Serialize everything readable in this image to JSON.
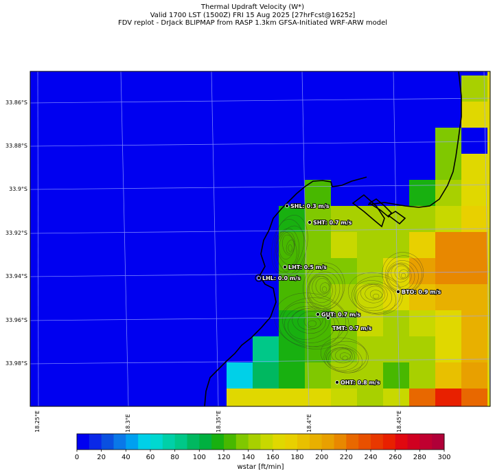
{
  "title": {
    "line1": "Thermal Updraft Velocity (W*)",
    "line2": "Valid 1700 LST (1500Z) FRI 15 Aug 2025 [27hrFcst@1625z]",
    "line3": "FDV replot - DrJack BLIPMAP from RASP 1.3km GFSA-Initiated WRF-ARW model"
  },
  "latitude_labels": [
    "33.86°S",
    "33.88°S",
    "33.9°S",
    "33.92°S",
    "33.94°S",
    "33.96°S",
    "33.98°S"
  ],
  "longitude_labels": [
    "18.25°E",
    "18.3°E",
    "18.35°E",
    "18.4°E",
    "18.45°E"
  ],
  "stations": [
    {
      "label": "SHL: 0.3 m/s"
    },
    {
      "label": "SHT: 0.7 m/s"
    },
    {
      "label": "LHT: 0.5 m/s"
    },
    {
      "label": "LHL: 0.0 m/s"
    },
    {
      "label": "BTO: 0.9 m/s"
    },
    {
      "label": "GUT: 0.7 m/s"
    },
    {
      "label": "TMT: 0.7 m/s"
    },
    {
      "label": "OHT: 0.8 m/s"
    }
  ],
  "colorbar": {
    "label": "wstar [ft/min]",
    "ticks": [
      "0",
      "20",
      "40",
      "60",
      "80",
      "100",
      "120",
      "140",
      "160",
      "180",
      "200",
      "220",
      "240",
      "260",
      "280",
      "300"
    ],
    "colors": [
      "#0000f0",
      "#0a28e8",
      "#0a50e0",
      "#0a78e8",
      "#00a0f0",
      "#00d0e8",
      "#00d8d0",
      "#00d0a8",
      "#00c888",
      "#00b860",
      "#00b040",
      "#18b010",
      "#48b800",
      "#80c800",
      "#a8d000",
      "#c8d800",
      "#e0d800",
      "#e8d000",
      "#e8c000",
      "#e8b000",
      "#e8a000",
      "#e88800",
      "#e86800",
      "#e85000",
      "#e83800",
      "#e82000",
      "#e00810",
      "#d00020",
      "#c00030",
      "#b00038"
    ]
  },
  "map_legend": {
    "value_unit": "ft/min",
    "grid": "4-column color cells over terrain contours"
  }
}
